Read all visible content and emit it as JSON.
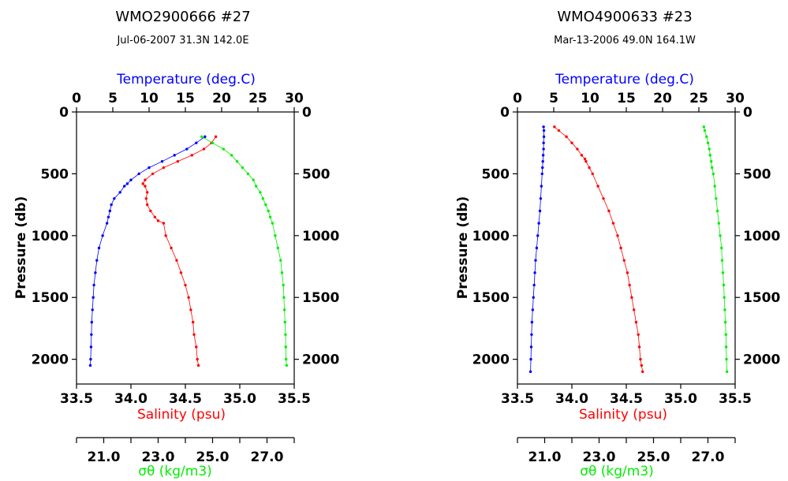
{
  "colors": {
    "temperature": "#0000ff",
    "salinity": "#ff0000",
    "sigma": "#00ee00",
    "frame": "#000000"
  },
  "chart_data": [
    {
      "type": "scatter",
      "title": "WMO2900666   #27",
      "subtitle": "Jul-06-2007   31.3N 142.0E",
      "y_axis": {
        "label": "Pressure (db)",
        "range": [
          0,
          2200
        ],
        "inverted": true,
        "ticks": [
          "0",
          "500",
          "1000",
          "1500",
          "2000"
        ],
        "tick_values": [
          0,
          500,
          1000,
          1500,
          2000
        ]
      },
      "temperature_axis": {
        "label": "Temperature (deg.C)",
        "range": [
          0,
          30
        ],
        "ticks": [
          "0",
          "5",
          "10",
          "15",
          "20",
          "25",
          "30"
        ],
        "tick_values": [
          0,
          5,
          10,
          15,
          20,
          25,
          30
        ]
      },
      "salinity_axis": {
        "label": "Salinity (psu)",
        "range": [
          33.5,
          35.5
        ],
        "ticks": [
          "33.5",
          "34.0",
          "34.5",
          "35.0",
          "35.5"
        ],
        "tick_values": [
          33.5,
          34.0,
          34.5,
          35.0,
          35.5
        ]
      },
      "sigma_axis": {
        "label": "σθ (kg/m3)",
        "range": [
          20,
          28
        ],
        "ticks": [
          "21.0",
          "23.0",
          "25.0",
          "27.0"
        ],
        "tick_values": [
          21,
          23,
          25,
          27
        ]
      },
      "series": [
        {
          "name": "Temperature",
          "axis": "temperature_axis",
          "pressure": [
            200,
            250,
            300,
            350,
            400,
            450,
            500,
            550,
            580,
            600,
            650,
            700,
            750,
            800,
            850,
            900,
            1000,
            1100,
            1200,
            1300,
            1400,
            1500,
            1600,
            1700,
            1800,
            1900,
            2000,
            2050
          ],
          "values": [
            17.7,
            16.5,
            15.2,
            13.5,
            11.8,
            10.0,
            8.6,
            7.5,
            7.0,
            6.6,
            6.0,
            5.2,
            4.8,
            4.6,
            4.4,
            4.2,
            3.6,
            3.1,
            2.8,
            2.6,
            2.4,
            2.3,
            2.2,
            2.1,
            2.05,
            2.0,
            1.95,
            1.9
          ]
        },
        {
          "name": "Salinity",
          "axis": "salinity_axis",
          "pressure": [
            200,
            250,
            300,
            350,
            400,
            450,
            500,
            550,
            580,
            600,
            650,
            700,
            750,
            800,
            850,
            880,
            900,
            1000,
            1100,
            1200,
            1300,
            1400,
            1500,
            1600,
            1700,
            1800,
            1900,
            2000,
            2050
          ],
          "values": [
            34.78,
            34.74,
            34.67,
            34.56,
            34.43,
            34.3,
            34.2,
            34.13,
            34.11,
            34.13,
            34.15,
            34.14,
            34.15,
            34.18,
            34.22,
            34.25,
            34.3,
            34.32,
            34.37,
            34.42,
            34.46,
            34.5,
            34.53,
            34.55,
            34.57,
            34.58,
            34.6,
            34.61,
            34.62
          ]
        },
        {
          "name": "σθ",
          "axis": "sigma_axis",
          "pressure": [
            200,
            250,
            300,
            350,
            400,
            450,
            500,
            550,
            600,
            650,
            700,
            750,
            800,
            850,
            900,
            1000,
            1100,
            1200,
            1300,
            1400,
            1500,
            1600,
            1700,
            1800,
            1900,
            2000,
            2050
          ],
          "values": [
            24.6,
            25.0,
            25.4,
            25.7,
            25.9,
            26.1,
            26.3,
            26.5,
            26.6,
            26.75,
            26.85,
            26.95,
            27.05,
            27.12,
            27.2,
            27.3,
            27.4,
            27.5,
            27.55,
            27.6,
            27.62,
            27.64,
            27.66,
            27.68,
            27.69,
            27.7,
            27.72
          ]
        }
      ]
    },
    {
      "type": "scatter",
      "title": "WMO4900633   #23",
      "subtitle": "Mar-13-2006   49.0N 164.1W",
      "y_axis": {
        "label": "Pressure (db)",
        "range": [
          0,
          2200
        ],
        "inverted": true,
        "ticks": [
          "0",
          "500",
          "1000",
          "1500",
          "2000"
        ],
        "tick_values": [
          0,
          500,
          1000,
          1500,
          2000
        ]
      },
      "temperature_axis": {
        "label": "Temperature (deg.C)",
        "range": [
          0,
          30
        ],
        "ticks": [
          "0",
          "5",
          "10",
          "15",
          "20",
          "25",
          "30"
        ],
        "tick_values": [
          0,
          5,
          10,
          15,
          20,
          25,
          30
        ]
      },
      "salinity_axis": {
        "label": "Salinity (psu)",
        "range": [
          33.5,
          35.5
        ],
        "ticks": [
          "33.5",
          "34.0",
          "34.5",
          "35.0",
          "35.5"
        ],
        "tick_values": [
          33.5,
          34.0,
          34.5,
          35.0,
          35.5
        ]
      },
      "sigma_axis": {
        "label": "σθ (kg/m3)",
        "range": [
          20,
          28
        ],
        "ticks": [
          "21.0",
          "23.0",
          "25.0",
          "27.0"
        ],
        "tick_values": [
          21,
          23,
          25,
          27
        ]
      },
      "series": [
        {
          "name": "Temperature",
          "axis": "temperature_axis",
          "pressure": [
            120,
            150,
            200,
            250,
            300,
            350,
            400,
            450,
            500,
            600,
            700,
            800,
            900,
            1000,
            1100,
            1200,
            1300,
            1400,
            1500,
            1600,
            1700,
            1800,
            1900,
            2000,
            2100
          ],
          "values": [
            3.6,
            3.65,
            3.65,
            3.6,
            3.6,
            3.55,
            3.5,
            3.45,
            3.4,
            3.3,
            3.2,
            3.1,
            2.95,
            2.8,
            2.65,
            2.5,
            2.4,
            2.3,
            2.2,
            2.1,
            2.0,
            1.95,
            1.9,
            1.85,
            1.8
          ]
        },
        {
          "name": "Salinity",
          "axis": "salinity_axis",
          "pressure": [
            120,
            150,
            200,
            250,
            300,
            350,
            380,
            400,
            450,
            500,
            600,
            700,
            800,
            900,
            1000,
            1100,
            1200,
            1300,
            1400,
            1500,
            1600,
            1700,
            1800,
            1900,
            2000,
            2050,
            2100
          ],
          "values": [
            33.84,
            33.88,
            33.95,
            34.0,
            34.05,
            34.09,
            34.12,
            34.13,
            34.16,
            34.19,
            34.24,
            34.29,
            34.34,
            34.38,
            34.42,
            34.45,
            34.48,
            34.51,
            34.53,
            34.55,
            34.57,
            34.59,
            34.61,
            34.62,
            34.63,
            34.64,
            34.65
          ]
        },
        {
          "name": "σθ",
          "axis": "sigma_axis",
          "pressure": [
            120,
            150,
            200,
            250,
            300,
            350,
            400,
            450,
            500,
            600,
            700,
            800,
            900,
            1000,
            1100,
            1200,
            1300,
            1400,
            1500,
            1600,
            1700,
            1800,
            1900,
            2000,
            2100
          ],
          "values": [
            26.85,
            26.88,
            26.95,
            27.0,
            27.05,
            27.08,
            27.12,
            27.15,
            27.2,
            27.25,
            27.3,
            27.35,
            27.4,
            27.45,
            27.5,
            27.52,
            27.55,
            27.58,
            27.6,
            27.62,
            27.64,
            27.66,
            27.67,
            27.68,
            27.7
          ]
        }
      ]
    }
  ]
}
